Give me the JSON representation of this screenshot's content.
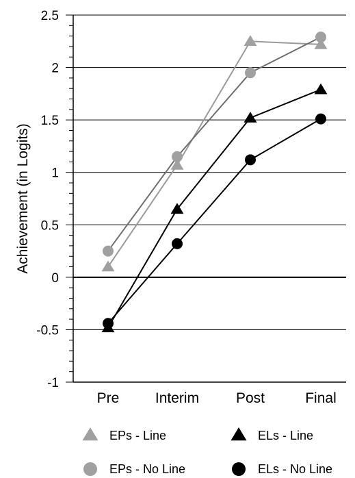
{
  "chart_data": {
    "type": "line",
    "title": "",
    "xlabel": "",
    "ylabel": "Achievement (in Logits)",
    "categories": [
      "Pre",
      "Interim",
      "Post",
      "Final"
    ],
    "ylim": [
      -1,
      2.5
    ],
    "yticks": [
      -1,
      -0.5,
      0,
      0.5,
      1,
      1.5,
      2,
      2.5
    ],
    "ytick_labels": [
      "-1",
      "-0.5",
      "0",
      "0.5",
      "1",
      "1.5",
      "2",
      "2.5"
    ],
    "grid": "horizontal",
    "legend_placement": "bottom",
    "series": [
      {
        "name": "EPs - Line",
        "values": [
          0.1,
          1.07,
          2.25,
          2.22
        ],
        "marker": "triangle",
        "color": "#a0a0a0",
        "line_color": "#9a9a9a"
      },
      {
        "name": "EPs - No Line",
        "values": [
          0.25,
          1.15,
          1.95,
          2.29
        ],
        "marker": "circle",
        "color": "#a0a0a0",
        "line_color": "#6e6e6e"
      },
      {
        "name": "ELs - Line",
        "values": [
          -0.48,
          0.65,
          1.52,
          1.79
        ],
        "marker": "triangle",
        "color": "#000000",
        "line_color": "#000000"
      },
      {
        "name": "ELs - No Line",
        "values": [
          -0.44,
          0.32,
          1.12,
          1.51
        ],
        "marker": "circle",
        "color": "#000000",
        "line_color": "#000000"
      }
    ]
  }
}
